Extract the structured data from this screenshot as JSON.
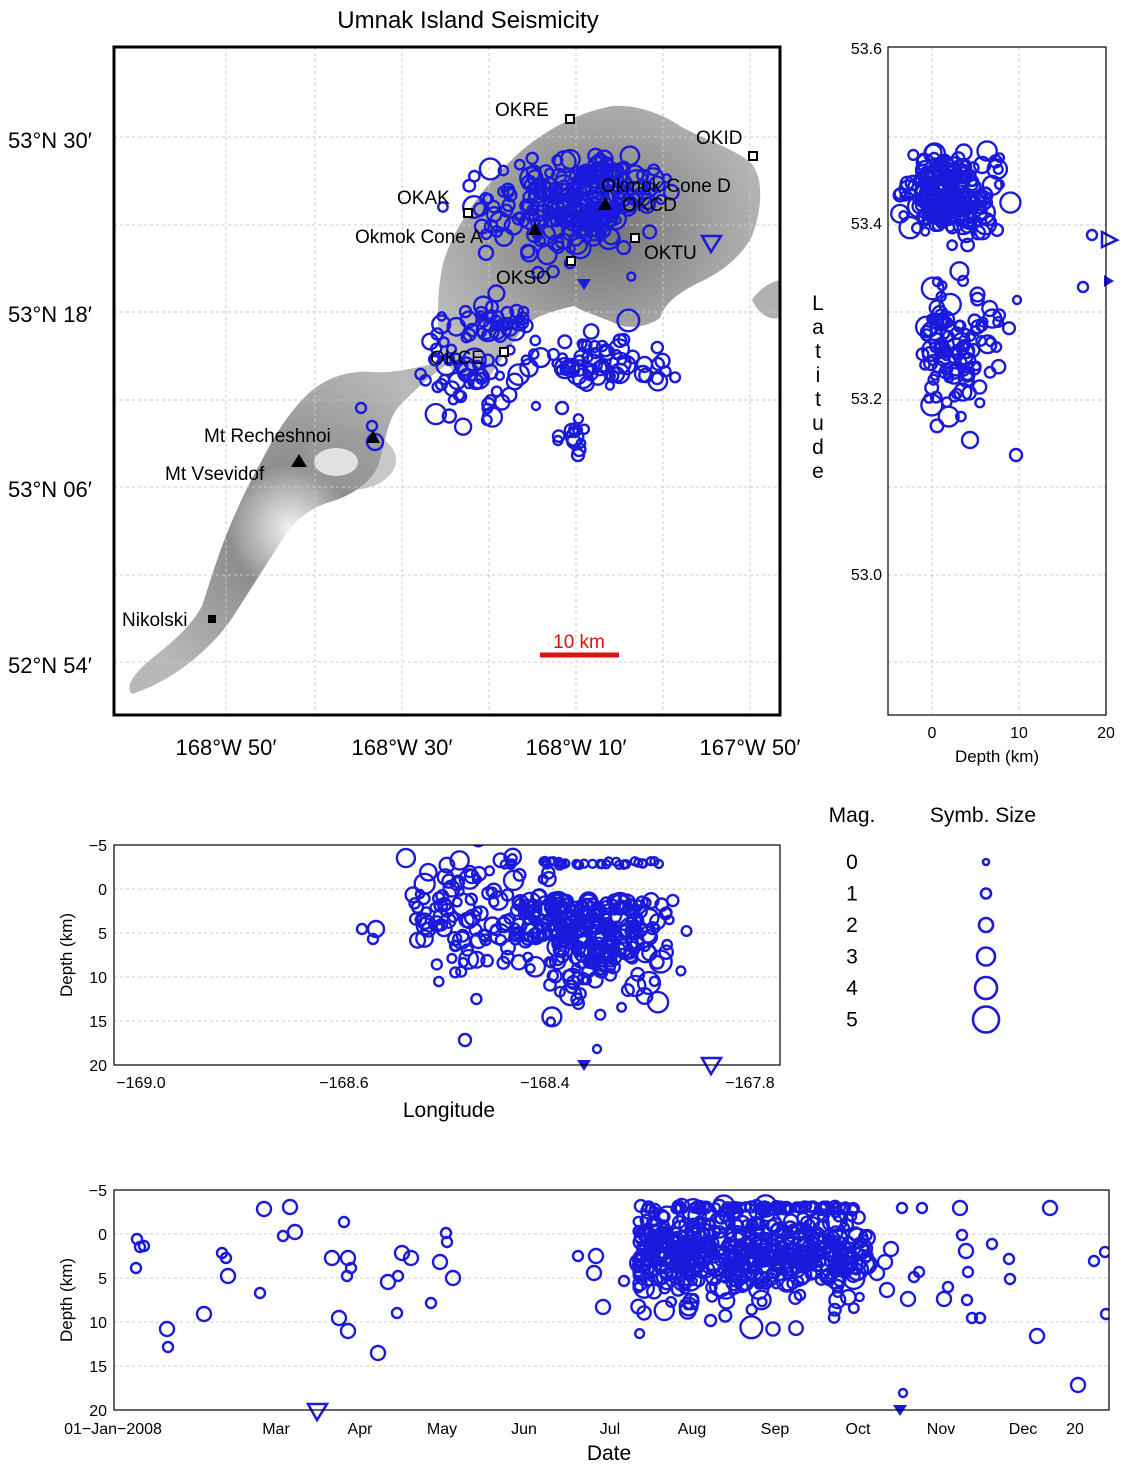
{
  "colors": {
    "events": "#1a1adc",
    "scalebar": "#dd1111",
    "land_light": "#c9c9c9",
    "land_dark": "#8a8a8a",
    "grid": "#c8c8c8"
  },
  "chart_data": [
    {
      "type": "map",
      "title": "Umnak Island Seismicity",
      "lat_ticks": [
        "53°N 30′",
        "53°N 18′",
        "53°N 06′",
        "52°N 54′"
      ],
      "lat_tick_values": [
        53.5,
        53.3,
        53.1,
        52.9
      ],
      "lon_ticks": [
        "168°W 50′",
        "168°W 30′",
        "168°W 10′",
        "167°W 50′"
      ],
      "lon_tick_values": [
        -168.833,
        -168.5,
        -168.167,
        -167.833
      ],
      "xlim": [
        -169.0,
        -167.8
      ],
      "ylim": [
        52.85,
        53.6
      ],
      "scale_bar": "10 km",
      "volcanoes": [
        {
          "name": "Okmok Cone D",
          "lon": -168.1,
          "lat": 53.42
        },
        {
          "name": "Okmok Cone A",
          "lon": -168.22,
          "lat": 53.4
        },
        {
          "name": "Mt Recheshnoi",
          "lon": -168.54,
          "lat": 53.16
        },
        {
          "name": "Mt Vsevidof",
          "lon": -168.69,
          "lat": 53.13
        }
      ],
      "stations": [
        {
          "name": "OKRE",
          "lon": -168.16,
          "lat": 53.52
        },
        {
          "name": "OKID",
          "lon": -167.83,
          "lat": 53.48
        },
        {
          "name": "OKAK",
          "lon": -168.36,
          "lat": 53.42
        },
        {
          "name": "OKCD",
          "lon": -168.1,
          "lat": 53.42
        },
        {
          "name": "OKTU",
          "lon": -168.05,
          "lat": 53.39
        },
        {
          "name": "OKSO",
          "lon": -168.17,
          "lat": 53.37
        },
        {
          "name": "OKCE",
          "lon": -168.3,
          "lat": 53.27
        }
      ],
      "town": {
        "name": "Nikolski",
        "lon": -168.86,
        "lat": 52.94
      }
    },
    {
      "type": "scatter",
      "ylabel": "Latitude",
      "xlabel": "Depth (km)",
      "xlim": [
        -5,
        20
      ],
      "ylim": [
        52.85,
        53.6
      ],
      "xticks": [
        "0",
        "10",
        "20"
      ],
      "yticks": [
        "53.6",
        "53.4",
        "53.2",
        "53.0"
      ]
    },
    {
      "type": "scatter",
      "xlabel": "Longitude",
      "ylabel": "Depth (km)",
      "xlim": [
        -169.0,
        -167.8
      ],
      "ylim": [
        -5,
        20
      ],
      "xticks": [
        "−169.0",
        "−168.6",
        "−168.4",
        "−167.8"
      ],
      "yticks": [
        "−5",
        "0",
        "5",
        "10",
        "15",
        "20"
      ]
    },
    {
      "type": "scatter",
      "xlabel": "Date",
      "ylabel": "Depth (km)",
      "ylim": [
        -5,
        20
      ],
      "xticks": [
        "01−Jan−2008",
        "Mar",
        "Apr",
        "May",
        "Jun",
        "Jul",
        "Aug",
        "Sep",
        "Oct",
        "Nov",
        "Dec",
        "20"
      ],
      "yticks": [
        "−5",
        "0",
        "5",
        "10",
        "15",
        "20"
      ]
    },
    {
      "type": "legend",
      "header_mag": "Mag.",
      "header_size": "Symb. Size",
      "mags": [
        "0",
        "1",
        "2",
        "3",
        "4",
        "5"
      ]
    }
  ]
}
